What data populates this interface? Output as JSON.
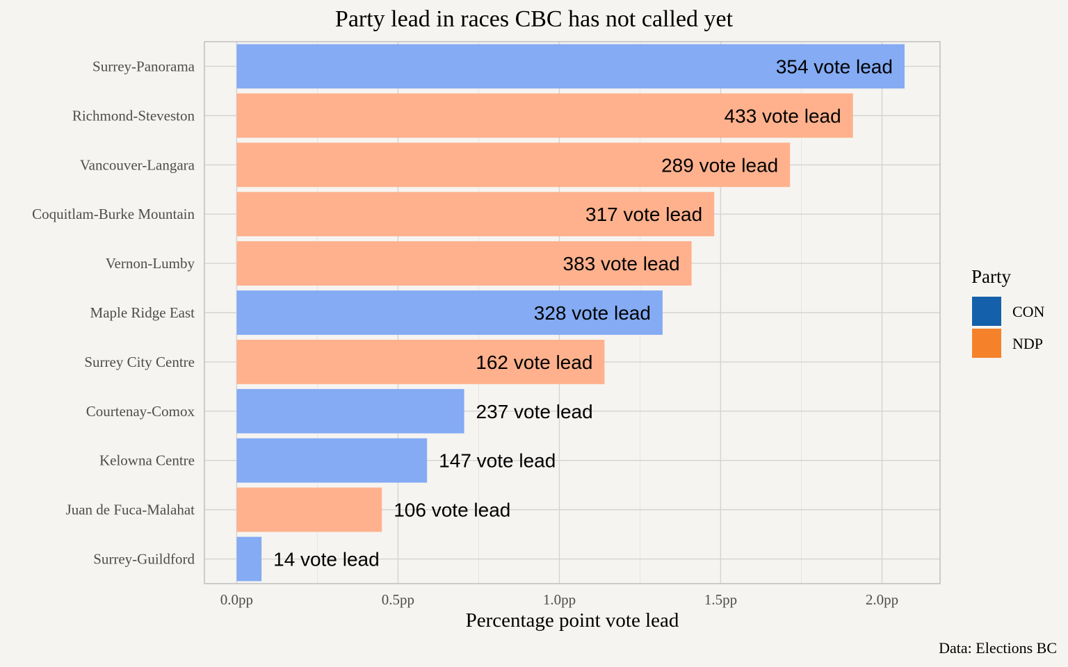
{
  "chart_data": {
    "type": "bar",
    "orientation": "horizontal",
    "title": "Party lead in races CBC has not called yet",
    "xlabel": "Percentage point vote lead",
    "ylabel": "",
    "xlim": [
      -0.1,
      2.18
    ],
    "x_ticks": [
      0,
      0.5,
      1.0,
      1.5,
      2.0
    ],
    "x_tick_labels": [
      "0.0pp",
      "0.5pp",
      "1.0pp",
      "1.5pp",
      "2.0pp"
    ],
    "grid": true,
    "categories": [
      "Surrey-Panorama",
      "Richmond-Steveston",
      "Vancouver-Langara",
      "Coquitlam-Burke Mountain",
      "Vernon-Lumby",
      "Maple Ridge East",
      "Surrey City Centre",
      "Courtenay-Comox",
      "Kelowna Centre",
      "Juan de Fuca-Malahat",
      "Surrey-Guildford"
    ],
    "values": [
      2.07,
      1.91,
      1.715,
      1.48,
      1.41,
      1.32,
      1.14,
      0.705,
      0.59,
      0.45,
      0.077
    ],
    "party": [
      "CON",
      "NDP",
      "NDP",
      "NDP",
      "NDP",
      "CON",
      "NDP",
      "CON",
      "CON",
      "NDP",
      "CON"
    ],
    "data_labels": [
      "354 vote lead",
      "433 vote lead",
      "289 vote lead",
      "317 vote lead",
      "383 vote lead",
      "328 vote lead",
      "162 vote lead",
      "237 vote lead",
      "147 vote lead",
      "106 vote lead",
      "14 vote lead"
    ],
    "legend": {
      "title": "Party",
      "placement": "right",
      "entries": [
        {
          "name": "CON",
          "color": "#1560ab"
        },
        {
          "name": "NDP",
          "color": "#f5822a"
        }
      ]
    },
    "bar_colors": {
      "CON": "#84abf3",
      "NDP": "#ffb18d"
    },
    "caption": "Data: Elections BC"
  },
  "colors": {
    "background": "#f6f4f0",
    "grid": "#d3d3d3",
    "panel_border": "#bfbfbf"
  }
}
